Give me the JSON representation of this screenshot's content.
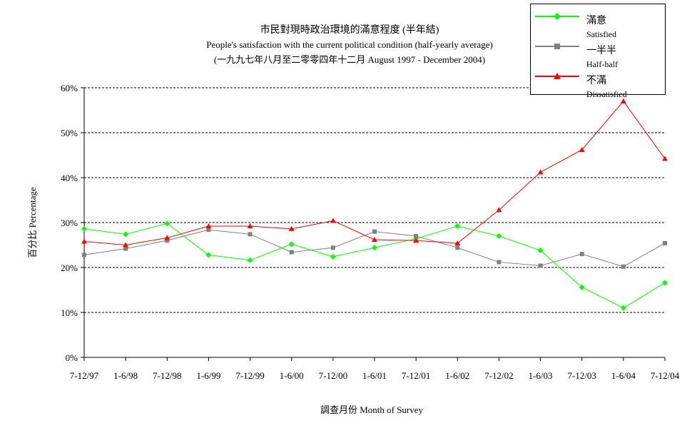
{
  "chart_data": {
    "type": "line",
    "title": "市民對現時政治環境的滿意程度 (半年結)",
    "subtitle": "People's satisfaction with the current political condition (half-yearly average)",
    "subtitle2": "(一九九七年八月至二零零四年十二月 August 1997 - December 2004)",
    "xlabel": "調查月份 Month of Survey",
    "ylabel": "百分比 Percentage",
    "ylim": [
      0,
      60
    ],
    "yticks": [
      "0%",
      "10%",
      "20%",
      "30%",
      "40%",
      "50%",
      "60%"
    ],
    "grid": true,
    "legend_position": "top-right",
    "categories": [
      "7-12/97",
      "1-6/98",
      "7-12/98",
      "1-6/99",
      "7-12/99",
      "1-6/00",
      "7-12/00",
      "1-6/01",
      "7-12/01",
      "1-6/02",
      "7-12/02",
      "1-6/03",
      "7-12/03",
      "1-6/04",
      "7-12/04"
    ],
    "series": [
      {
        "name": "滿意",
        "name_en": "Satisfied",
        "color": "#00ff00",
        "marker": "diamond",
        "values": [
          28.6,
          27.4,
          29.8,
          22.8,
          21.6,
          25.2,
          22.4,
          24.4,
          26.4,
          29.2,
          27.0,
          23.8,
          15.6,
          11.0,
          16.6
        ]
      },
      {
        "name": "一半半",
        "name_en": "Half-half",
        "color": "#808080",
        "marker": "square",
        "values": [
          22.8,
          24.2,
          26.0,
          28.4,
          27.4,
          23.4,
          24.4,
          28.0,
          27.0,
          24.4,
          21.2,
          20.4,
          23.0,
          20.2,
          25.4
        ]
      },
      {
        "name": "不滿",
        "name_en": "Dissatisfied",
        "color": "#ff0000",
        "marker": "triangle",
        "values": [
          25.8,
          25.0,
          26.6,
          29.2,
          29.2,
          28.6,
          30.4,
          26.2,
          26.0,
          25.4,
          32.8,
          41.2,
          46.2,
          57.0,
          44.2
        ]
      }
    ]
  }
}
